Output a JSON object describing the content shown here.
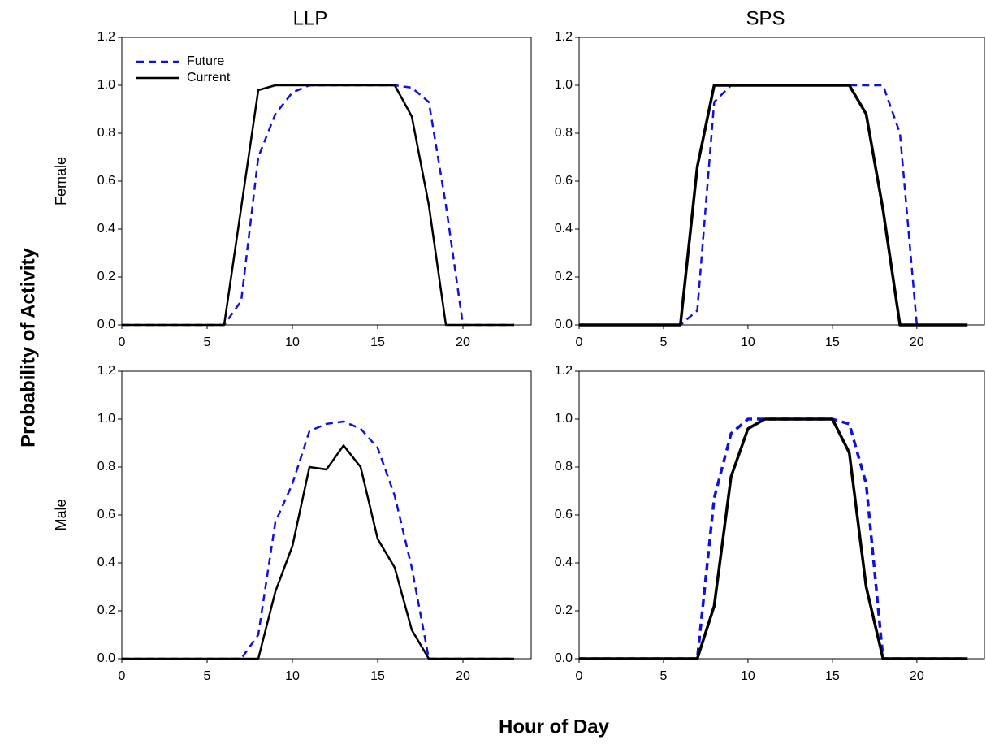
{
  "figure": {
    "ylabel": "Probability of Activity",
    "xlabel": "Hour of Day"
  },
  "chart_data": [
    {
      "type": "line",
      "title": "LLP",
      "ylabel": "Female",
      "x": [
        0,
        1,
        2,
        3,
        4,
        5,
        6,
        7,
        8,
        9,
        10,
        11,
        12,
        13,
        14,
        15,
        16,
        17,
        18,
        19,
        20,
        21,
        22,
        23
      ],
      "xlim": [
        0,
        24
      ],
      "xticks": [
        0,
        5,
        10,
        15,
        20
      ],
      "ylim": [
        0,
        1.2
      ],
      "yticks": [
        {
          "value": 0,
          "label": "0.0"
        },
        {
          "value": 0.2,
          "label": "0.2"
        },
        {
          "value": 0.4,
          "label": "0.4"
        },
        {
          "value": 0.6,
          "label": "0.6"
        },
        {
          "value": 0.8,
          "label": "0.8"
        },
        {
          "value": 1,
          "label": "1.0"
        },
        {
          "value": 1.2,
          "label": "1.2"
        }
      ],
      "legend": "upper left",
      "series": [
        {
          "name": "Future",
          "color": "#1010e0",
          "style": "dashed",
          "linewidth": 2.5,
          "values": [
            0,
            0,
            0,
            0,
            0,
            0,
            0,
            0.1,
            0.7,
            0.88,
            0.97,
            1,
            1,
            1,
            1,
            1,
            1,
            0.99,
            0.93,
            0.5,
            0,
            0,
            0,
            0
          ]
        },
        {
          "name": "Current",
          "color": "#000000",
          "style": "solid",
          "linewidth": 2.5,
          "values": [
            0,
            0,
            0,
            0,
            0,
            0,
            0,
            0.49,
            0.98,
            1,
            1,
            1,
            1,
            1,
            1,
            1,
            1,
            0.87,
            0.5,
            0,
            0,
            0,
            0,
            0
          ]
        }
      ]
    },
    {
      "type": "line",
      "title": "SPS",
      "x": [
        0,
        1,
        2,
        3,
        4,
        5,
        6,
        7,
        8,
        9,
        10,
        11,
        12,
        13,
        14,
        15,
        16,
        17,
        18,
        19,
        20,
        21,
        22,
        23
      ],
      "xlim": [
        0,
        24
      ],
      "xticks": [
        0,
        5,
        10,
        15,
        20
      ],
      "ylim": [
        0,
        1.2
      ],
      "yticks": [
        {
          "value": 0,
          "label": "0.0"
        },
        {
          "value": 0.2,
          "label": "0.2"
        },
        {
          "value": 0.4,
          "label": "0.4"
        },
        {
          "value": 0.6,
          "label": "0.6"
        },
        {
          "value": 0.8,
          "label": "0.8"
        },
        {
          "value": 1,
          "label": "1.0"
        },
        {
          "value": 1.2,
          "label": "1.2"
        }
      ],
      "series": [
        {
          "color": "#1010e0",
          "style": "dashed",
          "linewidth": 2.5,
          "values": [
            0,
            0,
            0,
            0,
            0,
            0,
            0,
            0.06,
            0.93,
            1,
            1,
            1,
            1,
            1,
            1,
            1,
            1,
            1,
            1,
            0.8,
            0,
            0,
            0,
            0
          ]
        },
        {
          "color": "#000000",
          "style": "solid",
          "linewidth": 3.5,
          "values": [
            0,
            0,
            0,
            0,
            0,
            0,
            0,
            0.66,
            1,
            1,
            1,
            1,
            1,
            1,
            1,
            1,
            1,
            0.88,
            0.48,
            0,
            0,
            0,
            0,
            0
          ]
        }
      ]
    },
    {
      "type": "line",
      "ylabel": "Male",
      "x": [
        0,
        1,
        2,
        3,
        4,
        5,
        6,
        7,
        8,
        9,
        10,
        11,
        12,
        13,
        14,
        15,
        16,
        17,
        18,
        19,
        20,
        21,
        22,
        23
      ],
      "xlim": [
        0,
        24
      ],
      "xticks": [
        0,
        5,
        10,
        15,
        20
      ],
      "ylim": [
        0,
        1.2
      ],
      "yticks": [
        {
          "value": 0,
          "label": "0.0"
        },
        {
          "value": 0.2,
          "label": "0.2"
        },
        {
          "value": 0.4,
          "label": "0.4"
        },
        {
          "value": 0.6,
          "label": "0.6"
        },
        {
          "value": 0.8,
          "label": "0.8"
        },
        {
          "value": 1,
          "label": "1.0"
        },
        {
          "value": 1.2,
          "label": "1.2"
        }
      ],
      "series": [
        {
          "color": "#1010e0",
          "style": "dashed",
          "linewidth": 2.5,
          "values": [
            0,
            0,
            0,
            0,
            0,
            0,
            0,
            0,
            0.1,
            0.57,
            0.73,
            0.95,
            0.98,
            0.99,
            0.96,
            0.88,
            0.68,
            0.38,
            0,
            0,
            0,
            0,
            0,
            0
          ]
        },
        {
          "color": "#000000",
          "style": "solid",
          "linewidth": 2.5,
          "values": [
            0,
            0,
            0,
            0,
            0,
            0,
            0,
            0,
            0,
            0.28,
            0.47,
            0.8,
            0.79,
            0.89,
            0.8,
            0.5,
            0.38,
            0.12,
            0,
            0,
            0,
            0,
            0,
            0
          ]
        }
      ]
    },
    {
      "type": "line",
      "x": [
        0,
        1,
        2,
        3,
        4,
        5,
        6,
        7,
        8,
        9,
        10,
        11,
        12,
        13,
        14,
        15,
        16,
        17,
        18,
        19,
        20,
        21,
        22,
        23
      ],
      "xlim": [
        0,
        24
      ],
      "xticks": [
        0,
        5,
        10,
        15,
        20
      ],
      "ylim": [
        0,
        1.2
      ],
      "yticks": [
        {
          "value": 0,
          "label": "0.0"
        },
        {
          "value": 0.2,
          "label": "0.2"
        },
        {
          "value": 0.4,
          "label": "0.4"
        },
        {
          "value": 0.6,
          "label": "0.6"
        },
        {
          "value": 0.8,
          "label": "0.8"
        },
        {
          "value": 1,
          "label": "1.0"
        },
        {
          "value": 1.2,
          "label": "1.2"
        }
      ],
      "series": [
        {
          "color": "#1010e0",
          "style": "dashed",
          "linewidth": 3.5,
          "values": [
            0,
            0,
            0,
            0,
            0,
            0,
            0,
            0,
            0.67,
            0.94,
            1,
            1,
            1,
            1,
            1,
            1,
            0.98,
            0.73,
            0,
            0,
            0,
            0,
            0,
            0
          ]
        },
        {
          "color": "#000000",
          "style": "solid",
          "linewidth": 3.5,
          "values": [
            0,
            0,
            0,
            0,
            0,
            0,
            0,
            0,
            0.22,
            0.76,
            0.96,
            1,
            1,
            1,
            1,
            1,
            0.86,
            0.3,
            0,
            0,
            0,
            0,
            0,
            0
          ]
        }
      ]
    }
  ]
}
